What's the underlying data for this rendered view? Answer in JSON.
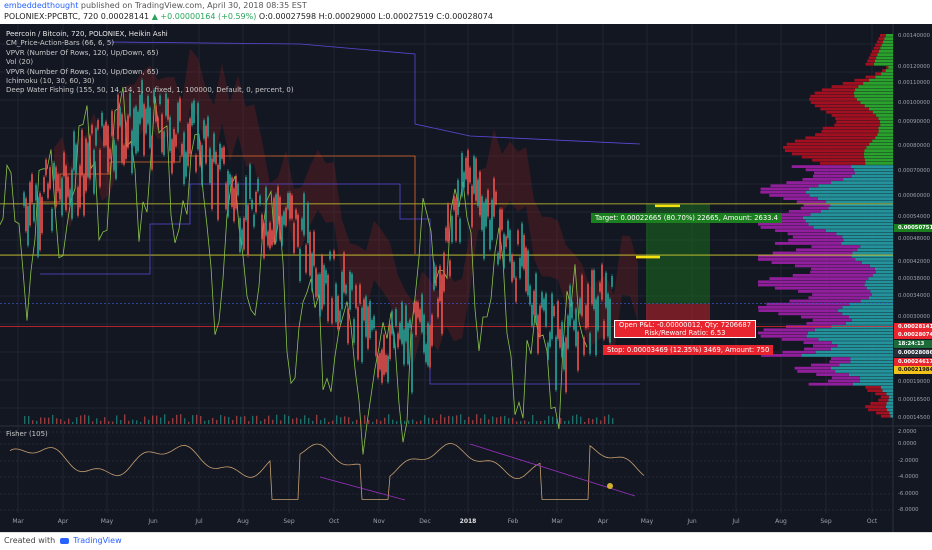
{
  "header": {
    "author": "embeddedthought",
    "published": "published on TradingView.com, April 30, 2018 08:35 EST",
    "symbol": "POLONIEX:PPCBTC, 720",
    "last": "0.00028141",
    "change": "▲ +0.00000164 (+0.59%)",
    "ohlc": "O:0.00027598 H:0.00029000 L:0.00027519 C:0.00028074"
  },
  "legend": {
    "title": "Peercoin / Bitcoin, 720, POLONIEX, Heikin Ashi",
    "indicators": [
      "CM_Price-Action-Bars (66, 6, 5)",
      "VPVR (Number Of Rows, 120, Up/Down, 65)",
      "Vol (20)",
      "VPVR (Number Of Rows, 120, Up/Down, 65)",
      "Ichimoku (10, 30, 60, 30)",
      "Deep Water Fishing (155, 50, 14, 14, 1, 0, fixed, 1, 100000, Default, 0, percent, 0)"
    ]
  },
  "trade": {
    "target": "Target: 0.00022665 (80.70%) 22665, Amount: 2633.4",
    "pnl_line1": "Open P&L: -0.00000012, Qty: 7206687",
    "pnl_line2": "Risk/Reward Ratio: 6.53",
    "stop": "Stop: 0.00003469 (12.35%) 3469, Amount: 750"
  },
  "fisher": {
    "label": "Fisher (105)",
    "ticks": [
      "2.0000",
      "0.0000",
      "-2.0000",
      "-4.0000",
      "-6.0000",
      "-8.0000"
    ]
  },
  "footer": {
    "created": "Created with",
    "brand": "TradingView"
  },
  "colors": {
    "background": "#131722",
    "candle_up": "#26a69a",
    "candle_down": "#ef5350",
    "target_green": "#1b7f1f",
    "stop_red": "#e8252e",
    "vp_up": "#26a0a8",
    "vp_down": "#a020a8",
    "vp_green": "#2fb02f",
    "vp_red": "#b01020"
  },
  "chart_data": {
    "type": "line",
    "title": "Peercoin / Bitcoin, 720, POLONIEX, Heikin Ashi",
    "x": [
      "Mar",
      "Apr",
      "May",
      "Jun",
      "Jul",
      "Aug",
      "Sep",
      "Oct",
      "Nov",
      "Dec",
      "2018",
      "Feb",
      "Mar",
      "Apr",
      "May",
      "Jun",
      "Jul",
      "Aug",
      "Sep",
      "Oct"
    ],
    "price_axis_labels": [
      "0.00140000",
      "0.00120000",
      "0.00110000",
      "0.00100000",
      "0.00090000",
      "0.00080000",
      "0.00070000",
      "0.00060000",
      "0.00054000",
      "0.00050751",
      "0.00048000",
      "0.00042000",
      "0.00038000",
      "0.00034000",
      "0.00030000",
      "0.00028141",
      "0.00028074",
      "18:24:13",
      "0.00028086",
      "0.00024617",
      "0.00021984",
      "0.00019000",
      "0.00016500",
      "0.00014500"
    ],
    "series": [
      {
        "name": "PPCBTC",
        "x": [
          "Mar",
          "Apr",
          "May",
          "Jun",
          "Jul",
          "Aug",
          "Sep",
          "Oct",
          "Nov",
          "Dec",
          "2018",
          "Feb",
          "Mar",
          "Apr"
        ],
        "values": [
          0.00052,
          0.00055,
          0.00078,
          0.00082,
          0.00075,
          0.0005,
          0.00047,
          0.00032,
          0.00022,
          0.00024,
          0.0006,
          0.00038,
          0.00023,
          0.00028
        ]
      }
    ],
    "levels": {
      "target": 0.00050751,
      "entry": 0.00028141,
      "stop": 0.00024617
    },
    "log_scale": true,
    "grid": true
  }
}
